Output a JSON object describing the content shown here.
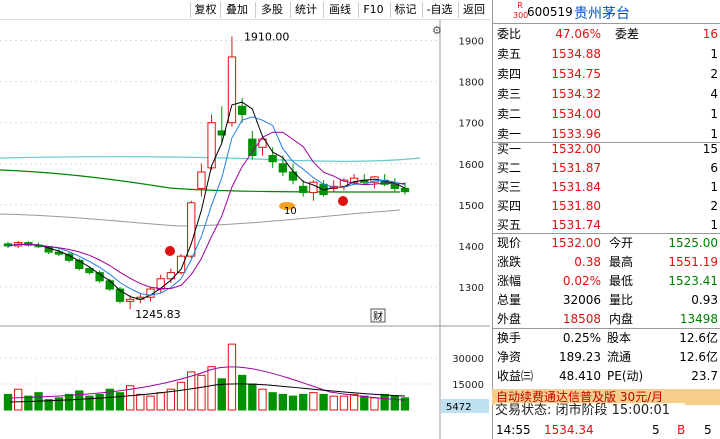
{
  "toolbar": {
    "items": [
      "复权",
      "叠加",
      "多股",
      "统计",
      "画线",
      "F10",
      "标记",
      "-自选",
      "返回"
    ]
  },
  "stock": {
    "badge_top": "R",
    "badge_bottom": "300",
    "code": "600519",
    "name": "贵州茅台"
  },
  "panel": {
    "wb_label": "委比",
    "wb_value": "47.06%",
    "wc_label": "委差",
    "wc_value": "16",
    "sell": [
      [
        "卖五",
        "1534.88",
        "1"
      ],
      [
        "卖四",
        "1534.75",
        "2"
      ],
      [
        "卖三",
        "1534.32",
        "4"
      ],
      [
        "卖二",
        "1534.00",
        "1"
      ],
      [
        "卖一",
        "1533.96",
        "1"
      ]
    ],
    "buy": [
      [
        "买一",
        "1532.00",
        "15"
      ],
      [
        "买二",
        "1531.87",
        "6"
      ],
      [
        "买三",
        "1531.84",
        "1"
      ],
      [
        "买四",
        "1531.80",
        "2"
      ],
      [
        "买五",
        "1531.74",
        "1"
      ]
    ],
    "quote": [
      [
        "现价",
        "1532.00",
        "今开",
        "1525.00"
      ],
      [
        "涨跌",
        "0.38",
        "最高",
        "1551.19"
      ],
      [
        "涨幅",
        "0.02%",
        "最低",
        "1523.41"
      ],
      [
        "总量",
        "32006",
        "量比",
        "0.93"
      ],
      [
        "外盘",
        "18508",
        "内盘",
        "13498"
      ]
    ],
    "fin": [
      [
        "换手",
        "0.25%",
        "股本",
        "12.6亿"
      ],
      [
        "净资",
        "189.23",
        "流通",
        "12.6亿"
      ],
      [
        "收益㈢",
        "48.410",
        "PE(动)",
        "23.7"
      ]
    ],
    "ad": "自动续费通达信普及版  30元/月",
    "status": "交易状态: 闭市阶段 15:00:01",
    "tick": {
      "time": "14:55",
      "price": "1534.34",
      "vol": "5",
      "flag": "B",
      "count": "5"
    }
  },
  "chart_data": {
    "type": "candlestick",
    "price_axis": [
      "1900",
      "1800",
      "1700",
      "1600",
      "1500",
      "1400",
      "1300"
    ],
    "vol_axis": [
      "30000",
      "15000"
    ],
    "annotations": {
      "high": "1910.00",
      "low": "1245.83",
      "ten": "10",
      "vol_tag": "5472",
      "cai": "财"
    },
    "candles": [
      [
        1405,
        1410,
        1395,
        1400
      ],
      [
        1400,
        1412,
        1395,
        1408
      ],
      [
        1408,
        1412,
        1398,
        1402
      ],
      [
        1402,
        1408,
        1395,
        1398
      ],
      [
        1398,
        1400,
        1380,
        1385
      ],
      [
        1385,
        1395,
        1375,
        1380
      ],
      [
        1380,
        1385,
        1360,
        1365
      ],
      [
        1365,
        1370,
        1340,
        1345
      ],
      [
        1345,
        1350,
        1330,
        1335
      ],
      [
        1335,
        1340,
        1310,
        1315
      ],
      [
        1315,
        1320,
        1290,
        1295
      ],
      [
        1295,
        1300,
        1260,
        1265
      ],
      [
        1265,
        1280,
        1246,
        1270
      ],
      [
        1270,
        1285,
        1260,
        1275
      ],
      [
        1275,
        1300,
        1265,
        1295
      ],
      [
        1295,
        1330,
        1285,
        1320
      ],
      [
        1320,
        1345,
        1310,
        1335
      ],
      [
        1335,
        1380,
        1330,
        1375
      ],
      [
        1375,
        1510,
        1370,
        1505
      ],
      [
        1540,
        1600,
        1520,
        1580
      ],
      [
        1590,
        1720,
        1585,
        1700
      ],
      [
        1680,
        1740,
        1650,
        1670
      ],
      [
        1700,
        1910,
        1690,
        1860
      ],
      [
        1740,
        1760,
        1700,
        1720
      ],
      [
        1660,
        1680,
        1610,
        1620
      ],
      [
        1640,
        1665,
        1620,
        1660
      ],
      [
        1620,
        1640,
        1590,
        1605
      ],
      [
        1600,
        1620,
        1570,
        1580
      ],
      [
        1580,
        1600,
        1550,
        1560
      ],
      [
        1545,
        1560,
        1520,
        1530
      ],
      [
        1530,
        1560,
        1510,
        1555
      ],
      [
        1550,
        1560,
        1520,
        1525
      ],
      [
        1540,
        1560,
        1530,
        1545
      ],
      [
        1545,
        1565,
        1535,
        1560
      ],
      [
        1555,
        1575,
        1548,
        1565
      ],
      [
        1560,
        1575,
        1550,
        1555
      ],
      [
        1555,
        1570,
        1540,
        1568
      ],
      [
        1560,
        1575,
        1545,
        1550
      ],
      [
        1550,
        1565,
        1530,
        1540
      ],
      [
        1540,
        1555,
        1525,
        1532
      ]
    ],
    "volume": [
      [
        9000,
        0
      ],
      [
        12000,
        1
      ],
      [
        8000,
        0
      ],
      [
        10000,
        0
      ],
      [
        6000,
        0
      ],
      [
        7000,
        0
      ],
      [
        9000,
        0
      ],
      [
        11000,
        0
      ],
      [
        8000,
        0
      ],
      [
        9000,
        0
      ],
      [
        12000,
        0
      ],
      [
        10000,
        0
      ],
      [
        14000,
        1
      ],
      [
        9000,
        1
      ],
      [
        8000,
        1
      ],
      [
        10000,
        1
      ],
      [
        12000,
        1
      ],
      [
        16000,
        1
      ],
      [
        22000,
        1
      ],
      [
        20000,
        1
      ],
      [
        25000,
        1
      ],
      [
        18000,
        0
      ],
      [
        38000,
        1
      ],
      [
        20000,
        0
      ],
      [
        15000,
        0
      ],
      [
        12000,
        1
      ],
      [
        10000,
        0
      ],
      [
        9000,
        0
      ],
      [
        8000,
        0
      ],
      [
        9000,
        0
      ],
      [
        10000,
        1
      ],
      [
        9000,
        0
      ],
      [
        8000,
        1
      ],
      [
        8000,
        1
      ],
      [
        9000,
        1
      ],
      [
        8000,
        0
      ],
      [
        7000,
        1
      ],
      [
        9000,
        0
      ],
      [
        8000,
        0
      ],
      [
        7000,
        0
      ]
    ]
  }
}
